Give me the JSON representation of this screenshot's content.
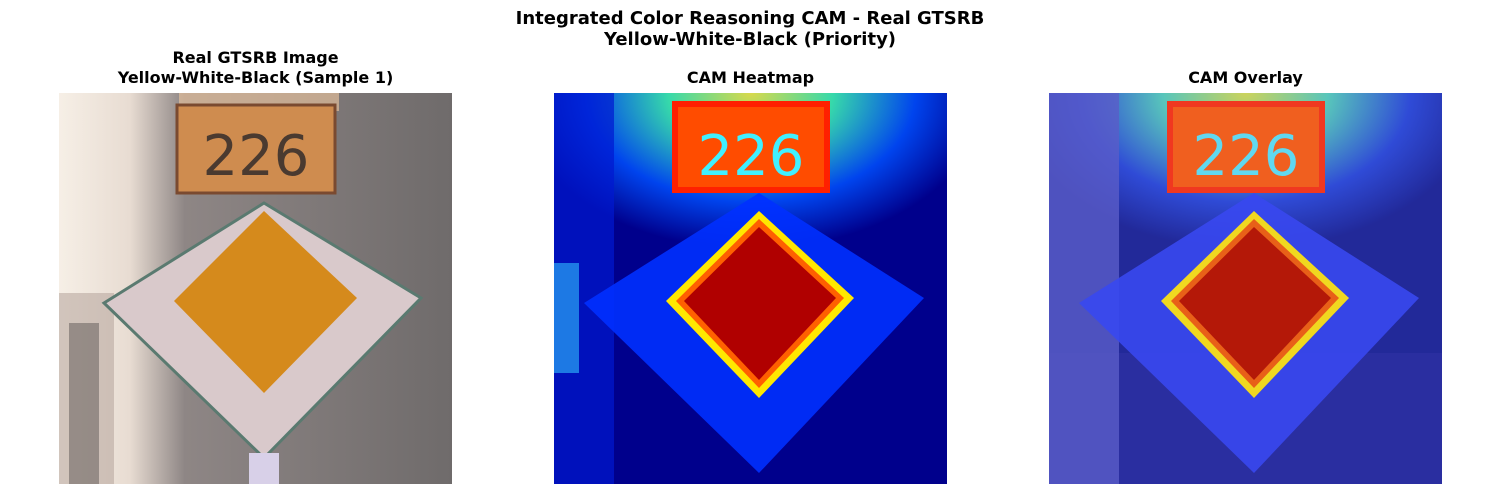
{
  "figure": {
    "title_line1": "Integrated Color Reasoning CAM - Real GTSRB",
    "title_line2": "Yellow-White-Black (Priority)"
  },
  "panels": [
    {
      "title_line1": "Real GTSRB Image",
      "title_line2": "Yellow-White-Black (Sample 1)",
      "sign_number": "226"
    },
    {
      "title_line1": "CAM Heatmap",
      "title_line2": "",
      "sign_number": "226"
    },
    {
      "title_line1": "CAM Overlay",
      "title_line2": "",
      "sign_number": "226"
    }
  ],
  "colors": {
    "sign_orange": "#d58a1c",
    "sign_white": "#d9c9cb",
    "background_gray": "#74706f",
    "jet_blue": "#00008c",
    "jet_red": "#b00000",
    "jet_yellow": "#ffe800"
  }
}
